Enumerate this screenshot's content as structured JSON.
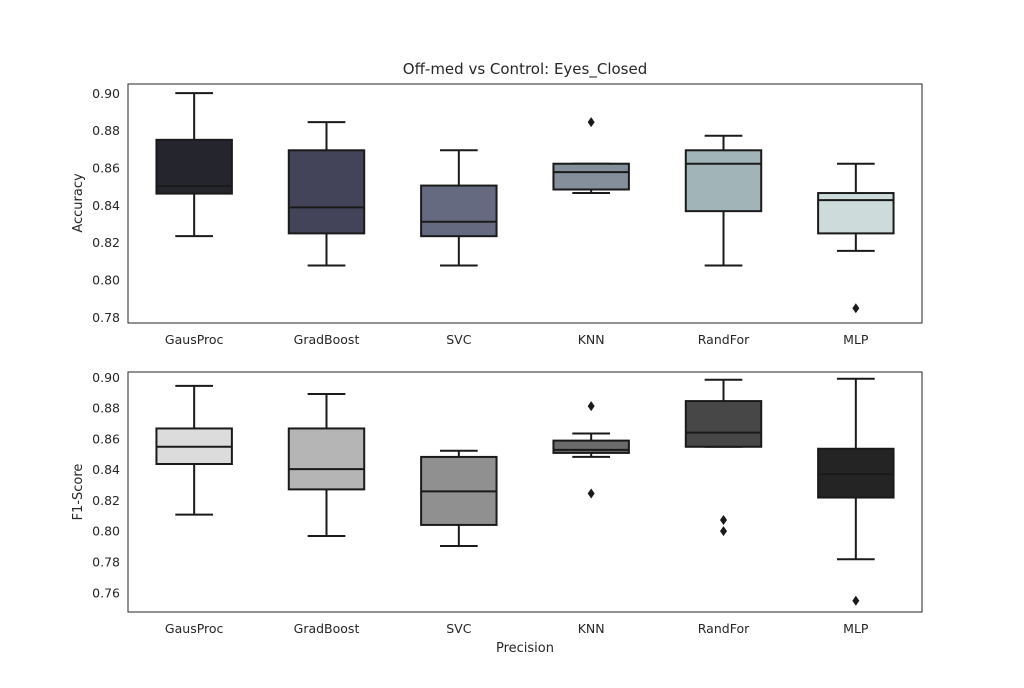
{
  "chart_data": [
    {
      "type": "box",
      "title": "Off-med vs Control: Eyes_Closed",
      "xlabel": "",
      "ylabel": "Accuracy",
      "ylim": [
        0.777,
        0.905
      ],
      "yticks": [
        "0.78",
        "0.80",
        "0.82",
        "0.84",
        "0.86",
        "0.88",
        "0.90"
      ],
      "categories": [
        "GausProc",
        "GradBoost",
        "SVC",
        "KNN",
        "RandFor",
        "MLP"
      ],
      "colors": [
        "#25262d",
        "#43435a",
        "#656a81",
        "#848f9b",
        "#a1b5b8",
        "#cddbdb"
      ],
      "boxes": [
        {
          "whislo": 0.8235,
          "q1": 0.8463,
          "med": 0.8503,
          "q3": 0.8751,
          "whishi": 0.9001,
          "fliers": []
        },
        {
          "whislo": 0.8078,
          "q1": 0.825,
          "med": 0.8389,
          "q3": 0.8695,
          "whishi": 0.8846,
          "fliers": []
        },
        {
          "whislo": 0.8078,
          "q1": 0.8235,
          "med": 0.8312,
          "q3": 0.8506,
          "whishi": 0.8695,
          "fliers": []
        },
        {
          "whislo": 0.8466,
          "q1": 0.8485,
          "med": 0.8578,
          "q3": 0.8623,
          "whishi": 0.8623,
          "fliers": [
            0.8846
          ]
        },
        {
          "whislo": 0.8078,
          "q1": 0.8369,
          "med": 0.8623,
          "q3": 0.8695,
          "whishi": 0.8773,
          "fliers": []
        },
        {
          "whislo": 0.8156,
          "q1": 0.825,
          "med": 0.8428,
          "q3": 0.8466,
          "whishi": 0.8623,
          "fliers": [
            0.7849
          ]
        }
      ]
    },
    {
      "type": "box",
      "title": "",
      "xlabel": "Precision",
      "ylabel": "F1-Score",
      "ylim": [
        0.7475,
        0.9035
      ],
      "yticks": [
        "0.76",
        "0.78",
        "0.80",
        "0.82",
        "0.84",
        "0.86",
        "0.88",
        "0.90"
      ],
      "categories": [
        "GausProc",
        "GradBoost",
        "SVC",
        "KNN",
        "RandFor",
        "MLP"
      ],
      "colors": [
        "#dcdcdc",
        "#b5b5b5",
        "#909090",
        "#6b6b6b",
        "#474747",
        "#242424"
      ],
      "boxes": [
        {
          "whislo": 0.8108,
          "q1": 0.8437,
          "med": 0.8549,
          "q3": 0.8668,
          "whishi": 0.8945,
          "fliers": []
        },
        {
          "whislo": 0.7969,
          "q1": 0.8272,
          "med": 0.8404,
          "q3": 0.8668,
          "whishi": 0.8892,
          "fliers": []
        },
        {
          "whislo": 0.7904,
          "q1": 0.8041,
          "med": 0.8259,
          "q3": 0.8483,
          "whishi": 0.8523,
          "fliers": []
        },
        {
          "whislo": 0.8483,
          "q1": 0.8509,
          "med": 0.8529,
          "q3": 0.8589,
          "whishi": 0.8635,
          "fliers": [
            0.8813,
            0.8245
          ]
        },
        {
          "whislo": 0.8549,
          "q1": 0.8549,
          "med": 0.8641,
          "q3": 0.8846,
          "whishi": 0.8985,
          "fliers": [
            0.8073,
            0.8001
          ]
        },
        {
          "whislo": 0.7818,
          "q1": 0.8219,
          "med": 0.837,
          "q3": 0.8536,
          "whishi": 0.8991,
          "fliers": [
            0.7548
          ]
        }
      ]
    }
  ]
}
